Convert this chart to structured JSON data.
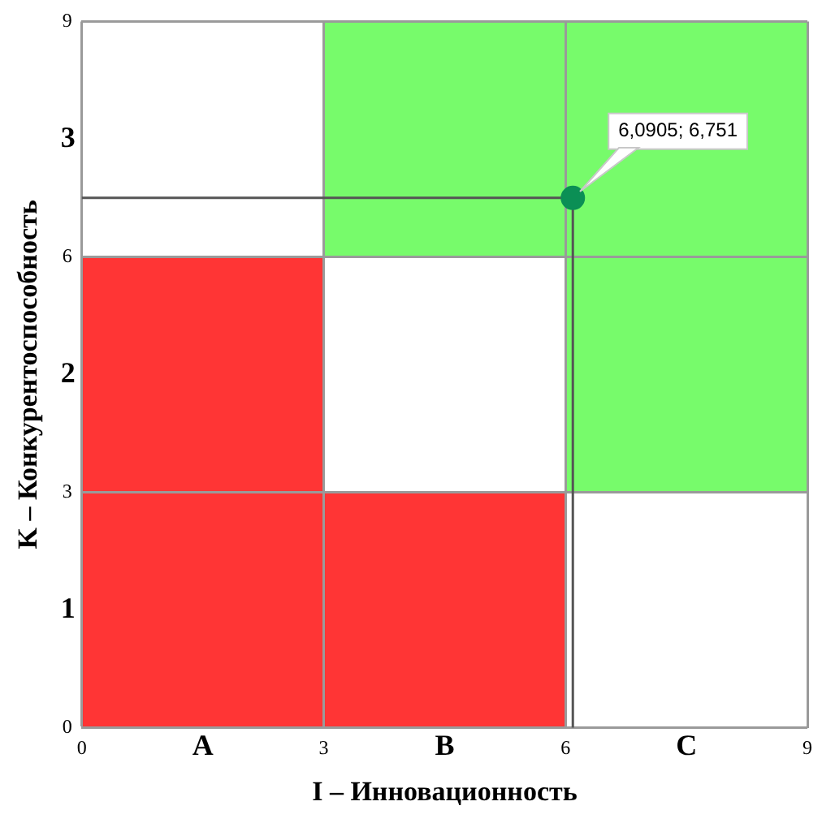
{
  "chart_data": {
    "type": "scatter",
    "xlabel": "I – Инновационность",
    "ylabel": "K – Конкурентоспособность",
    "x": [
      6.0905
    ],
    "values": [
      6.751
    ],
    "color": "#0b8f55",
    "marker": "circle",
    "value_labels": [
      "6,0905; 6,751"
    ],
    "xlim": [
      0,
      9
    ],
    "ylim": [
      0,
      9
    ],
    "xticks": [
      0,
      3,
      6,
      9
    ],
    "yticks": [
      0,
      3,
      6,
      9
    ],
    "annotations": [
      "A",
      "B",
      "C",
      "1",
      "2",
      "3"
    ],
    "ref_lines": [
      {
        "axis": "y",
        "value": 6.751,
        "color": "#555555"
      },
      {
        "axis": "x",
        "value": 6.0905,
        "color": "#555555"
      }
    ],
    "grid": true,
    "legend": false
  }
}
